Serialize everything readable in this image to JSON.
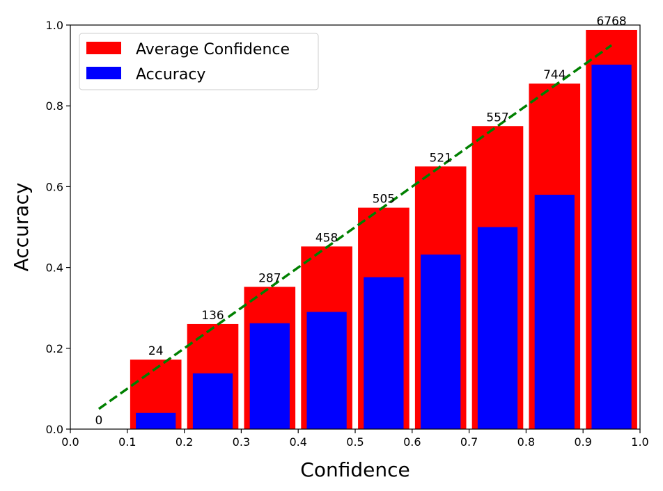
{
  "chart_data": {
    "type": "bar",
    "xlabel": "Confidence",
    "ylabel": "Accuracy",
    "xlim": [
      0.0,
      1.0
    ],
    "ylim": [
      0.0,
      1.0
    ],
    "xticks": [
      "0.0",
      "0.1",
      "0.2",
      "0.3",
      "0.4",
      "0.5",
      "0.6",
      "0.7",
      "0.8",
      "0.9",
      "1.0"
    ],
    "yticks": [
      "0.0",
      "0.2",
      "0.4",
      "0.6",
      "0.8",
      "1.0"
    ],
    "bins": [
      0.05,
      0.15,
      0.25,
      0.35,
      0.45,
      0.55,
      0.65,
      0.75,
      0.85,
      0.95
    ],
    "counts": [
      "0",
      "24",
      "136",
      "287",
      "458",
      "505",
      "521",
      "557",
      "744",
      "6768"
    ],
    "series": [
      {
        "name": "Average Confidence",
        "color": "#ff0000",
        "values": [
          0.0,
          0.172,
          0.26,
          0.352,
          0.452,
          0.548,
          0.65,
          0.75,
          0.855,
          0.988
        ]
      },
      {
        "name": "Accuracy",
        "color": "#0000ff",
        "values": [
          0.0,
          0.04,
          0.138,
          0.262,
          0.29,
          0.376,
          0.432,
          0.5,
          0.58,
          0.902
        ]
      }
    ],
    "reference_line": {
      "x": [
        0.05,
        0.95
      ],
      "y": [
        0.05,
        0.95
      ],
      "color": "#008000",
      "style": "dashed"
    },
    "legend": {
      "placement": "top-left"
    },
    "grid": false
  }
}
